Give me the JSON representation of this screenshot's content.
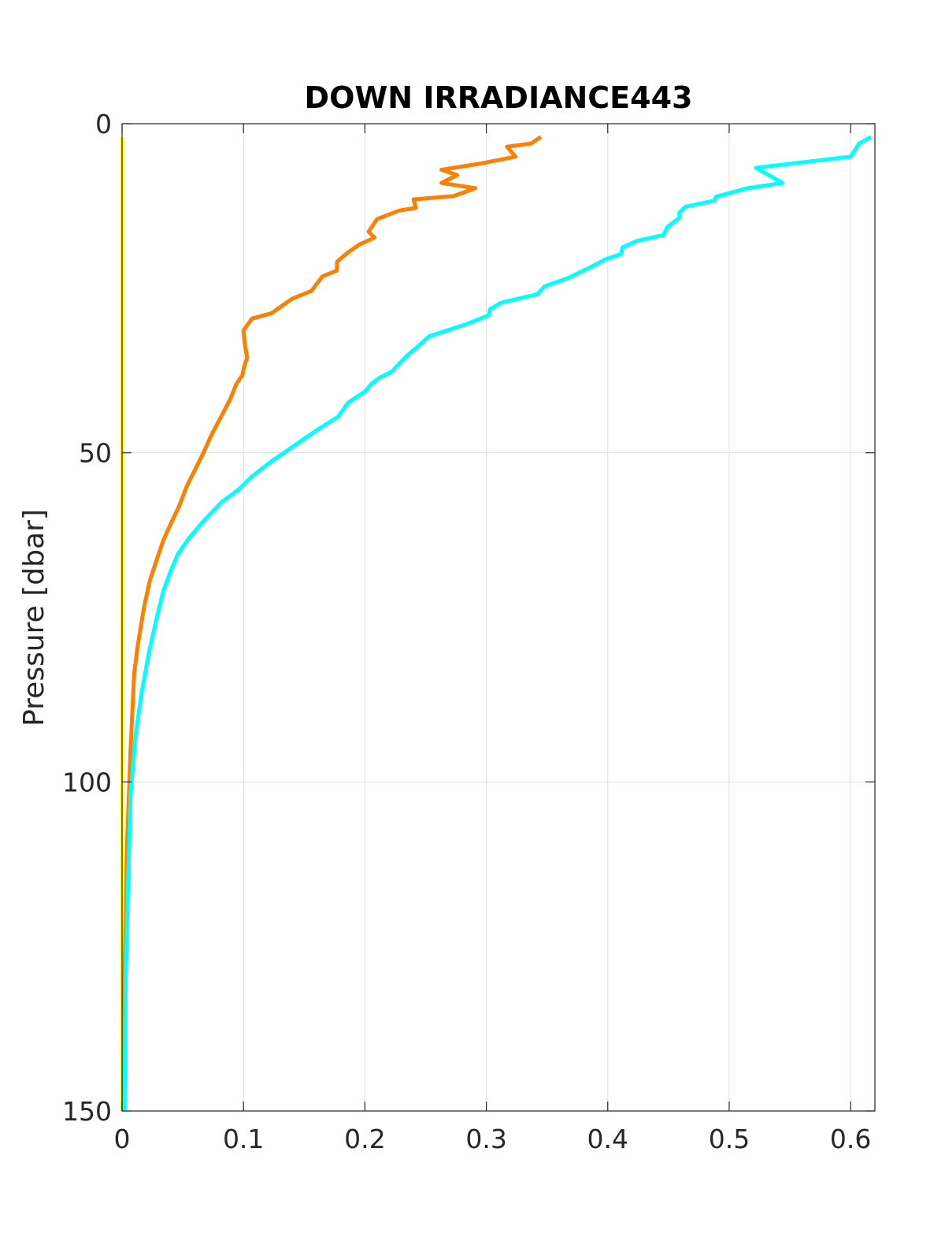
{
  "chart_data": {
    "type": "line",
    "title": "DOWN IRRADIANCE443",
    "xlabel": "",
    "ylabel": "Pressure [dbar]",
    "xlim": [
      0,
      0.62
    ],
    "ylim": [
      0,
      150
    ],
    "y_reversed": true,
    "grid": true,
    "x_ticks": [
      "0",
      "0.1",
      "0.2",
      "0.3",
      "0.4",
      "0.5",
      "0.6"
    ],
    "y_ticks": [
      "0",
      "50",
      "100",
      "150"
    ],
    "series": [
      {
        "color": "#ffff00",
        "points": [
          [
            0.0,
            2
          ],
          [
            0.0,
            30
          ],
          [
            0.0,
            60
          ],
          [
            0.0,
            90
          ],
          [
            0.0,
            110
          ],
          [
            0.0,
            130
          ],
          [
            0.0,
            150
          ]
        ]
      },
      {
        "color": "#ff8000",
        "points": [
          [
            0.345,
            2
          ],
          [
            0.337,
            3
          ],
          [
            0.317,
            3.5
          ],
          [
            0.324,
            5
          ],
          [
            0.297,
            6
          ],
          [
            0.263,
            7
          ],
          [
            0.276,
            7.8
          ],
          [
            0.263,
            9
          ],
          [
            0.291,
            9.8
          ],
          [
            0.273,
            11
          ],
          [
            0.24,
            11.5
          ],
          [
            0.242,
            12.8
          ],
          [
            0.228,
            13.2
          ],
          [
            0.21,
            14.5
          ],
          [
            0.203,
            16.4
          ],
          [
            0.208,
            17.3
          ],
          [
            0.195,
            18.4
          ],
          [
            0.185,
            19.7
          ],
          [
            0.177,
            21
          ],
          [
            0.177,
            22.3
          ],
          [
            0.165,
            23.2
          ],
          [
            0.156,
            25.4
          ],
          [
            0.14,
            26.6
          ],
          [
            0.123,
            28.8
          ],
          [
            0.107,
            29.6
          ],
          [
            0.1,
            31.4
          ],
          [
            0.101,
            33.3
          ],
          [
            0.103,
            35.6
          ],
          [
            0.101,
            36.6
          ],
          [
            0.099,
            38.2
          ],
          [
            0.094,
            39.6
          ],
          [
            0.089,
            41.9
          ],
          [
            0.081,
            44.7
          ],
          [
            0.073,
            47.5
          ],
          [
            0.067,
            50.0
          ],
          [
            0.06,
            52.6
          ],
          [
            0.053,
            55.2
          ],
          [
            0.047,
            58.1
          ],
          [
            0.04,
            60.8
          ],
          [
            0.034,
            63.3
          ],
          [
            0.029,
            66.0
          ],
          [
            0.023,
            69.3
          ],
          [
            0.018,
            73.5
          ],
          [
            0.013,
            79.2
          ],
          [
            0.01,
            83.5
          ],
          [
            0.007,
            95.0
          ],
          [
            0.004,
            110.0
          ],
          [
            0.002,
            130.0
          ],
          [
            0.001,
            150.0
          ]
        ]
      },
      {
        "color": "#00ffff",
        "points": [
          [
            0.617,
            2
          ],
          [
            0.607,
            3
          ],
          [
            0.6,
            5
          ],
          [
            0.522,
            6.7
          ],
          [
            0.544,
            9
          ],
          [
            0.515,
            9.8
          ],
          [
            0.489,
            11.1
          ],
          [
            0.488,
            11.7
          ],
          [
            0.464,
            12.6
          ],
          [
            0.459,
            13.5
          ],
          [
            0.459,
            14.3
          ],
          [
            0.449,
            15.7
          ],
          [
            0.446,
            16.9
          ],
          [
            0.424,
            17.8
          ],
          [
            0.412,
            18.8
          ],
          [
            0.411,
            19.8
          ],
          [
            0.398,
            20.6
          ],
          [
            0.39,
            21.4
          ],
          [
            0.368,
            23.4
          ],
          [
            0.348,
            24.7
          ],
          [
            0.342,
            25.9
          ],
          [
            0.312,
            27.2
          ],
          [
            0.303,
            28.2
          ],
          [
            0.302,
            29.1
          ],
          [
            0.283,
            30.5
          ],
          [
            0.253,
            32.3
          ],
          [
            0.245,
            33.6
          ],
          [
            0.235,
            35.2
          ],
          [
            0.227,
            36.7
          ],
          [
            0.222,
            37.7
          ],
          [
            0.212,
            38.6
          ],
          [
            0.205,
            39.6
          ],
          [
            0.2,
            40.7
          ],
          [
            0.186,
            42.4
          ],
          [
            0.178,
            44.5
          ],
          [
            0.16,
            46.6
          ],
          [
            0.138,
            49.4
          ],
          [
            0.123,
            51.3
          ],
          [
            0.107,
            53.6
          ],
          [
            0.096,
            55.6
          ],
          [
            0.082,
            57.5
          ],
          [
            0.067,
            60.4
          ],
          [
            0.055,
            63.0
          ],
          [
            0.046,
            65.4
          ],
          [
            0.04,
            68.0
          ],
          [
            0.034,
            71.0
          ],
          [
            0.028,
            75.5
          ],
          [
            0.022,
            80.5
          ],
          [
            0.016,
            86.5
          ],
          [
            0.011,
            93.0
          ],
          [
            0.007,
            102.0
          ],
          [
            0.005,
            115.0
          ],
          [
            0.003,
            130.0
          ],
          [
            0.002,
            150.0
          ]
        ]
      }
    ]
  }
}
